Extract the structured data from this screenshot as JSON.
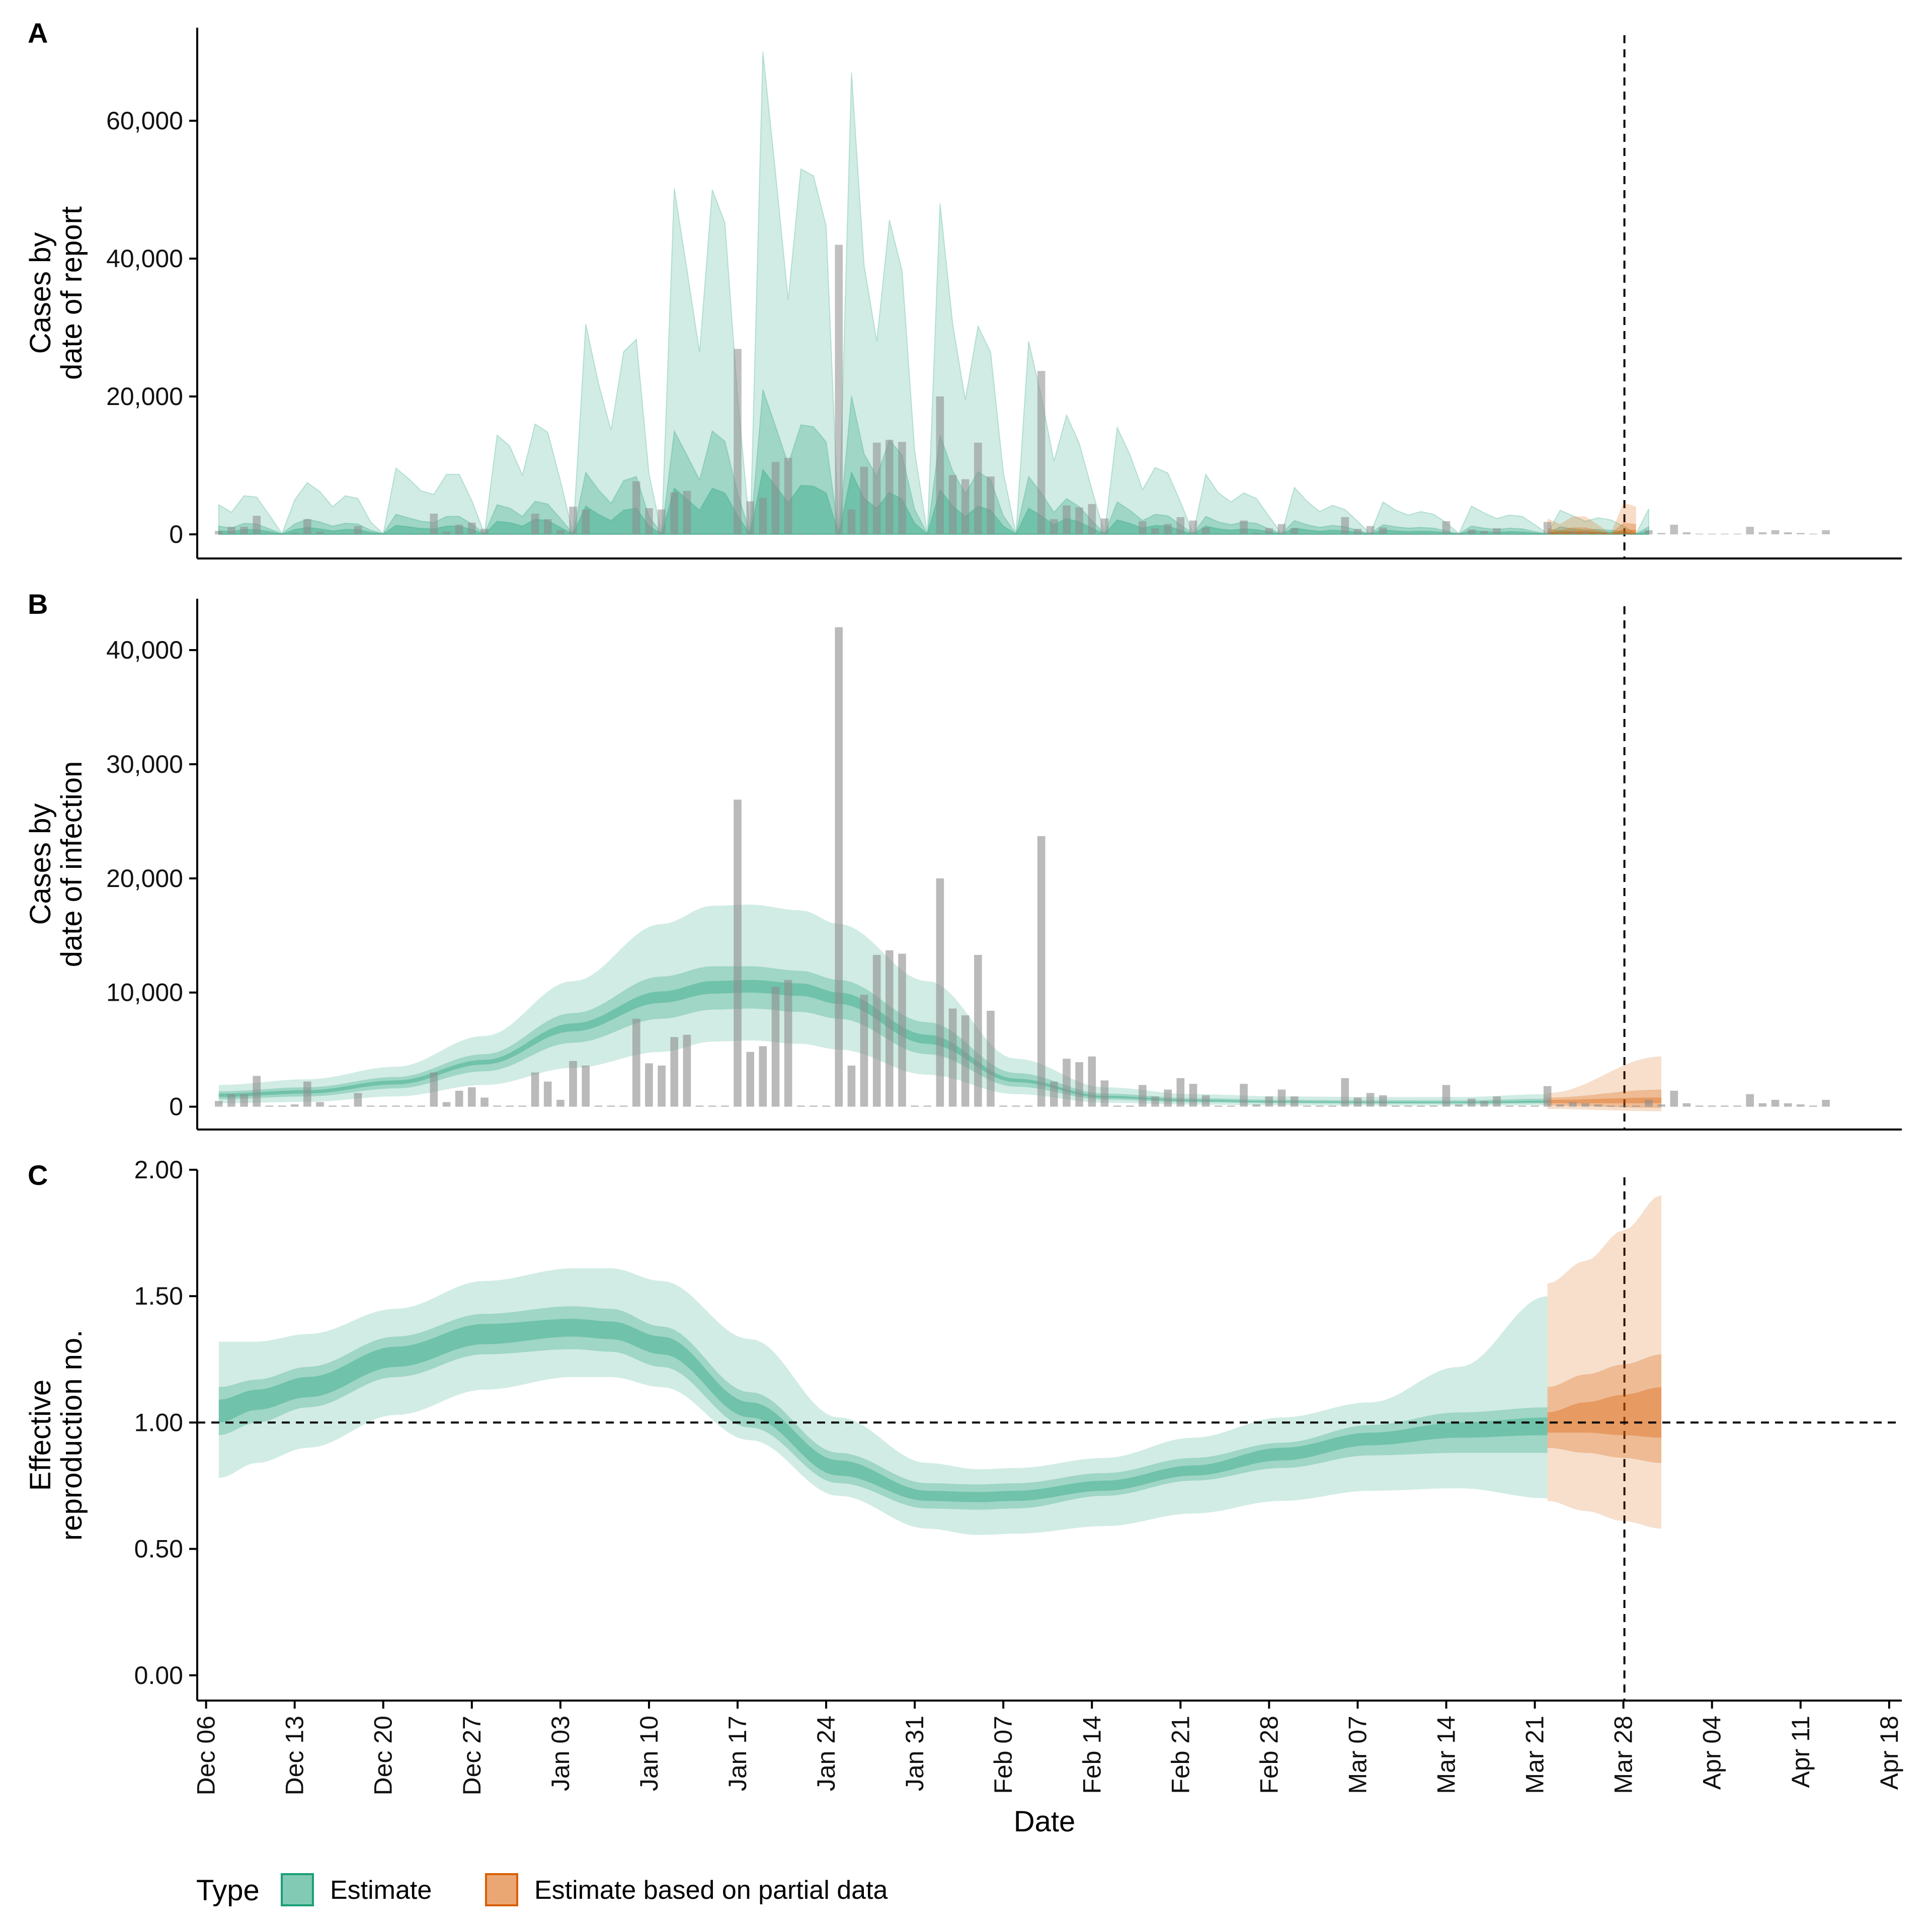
{
  "chart_data": {
    "type": "area",
    "shared_x_axis": {
      "label": "Date",
      "tick_labels": [
        "Dec 06",
        "Dec 13",
        "Dec 20",
        "Dec 27",
        "Jan 03",
        "Jan 10",
        "Jan 17",
        "Jan 24",
        "Jan 31",
        "Feb 07",
        "Feb 14",
        "Feb 21",
        "Feb 28",
        "Mar 07",
        "Mar 14",
        "Mar 21",
        "Mar 28",
        "Apr 04",
        "Apr 11",
        "Apr 18"
      ],
      "range_days_from_first_tick": [
        -0.7,
        134
      ],
      "vertical_marker": "Mar 28"
    },
    "colors": {
      "estimate": "#1b9e77",
      "partial": "#d95f02",
      "bars": "#8c8c8c"
    },
    "legend": {
      "title": "Type",
      "placement": "bottom-left",
      "items": [
        {
          "label": "Estimate",
          "color": "#1b9e77"
        },
        {
          "label": "Estimate based on partial data",
          "color": "#d95f02"
        }
      ]
    },
    "panels": [
      {
        "letter": "A",
        "ylabel_lines": [
          "Cases by",
          "date of report"
        ],
        "ylim": [
          -3500,
          73500
        ],
        "yticks": [
          0,
          20000,
          40000,
          60000
        ],
        "ytick_labels": [
          "0",
          "20,000",
          "40,000",
          "60,000"
        ]
      },
      {
        "letter": "B",
        "ylabel_lines": [
          "Cases by",
          "date of infection"
        ],
        "ylim": [
          -2000,
          44500
        ],
        "yticks": [
          0,
          10000,
          20000,
          30000,
          40000
        ],
        "ytick_labels": [
          "0",
          "10,000",
          "20,000",
          "30,000",
          "40,000"
        ]
      },
      {
        "letter": "C",
        "ylabel_lines": [
          "Effective",
          "reproduction no."
        ],
        "ylim": [
          -0.1,
          2.0
        ],
        "yticks": [
          0,
          0.5,
          1.0,
          1.5,
          2.0
        ],
        "ytick_labels": [
          "0.00",
          "0.50",
          "1.00",
          "1.50",
          "2.00"
        ],
        "horizontal_marker": 1.0
      }
    ],
    "observed_cases": {
      "start_date": "Dec 07",
      "values": [
        500,
        1100,
        1100,
        2700,
        100,
        100,
        200,
        2200,
        400,
        100,
        100,
        1200,
        100,
        100,
        100,
        100,
        100,
        3000,
        400,
        1400,
        1700,
        800,
        100,
        100,
        100,
        3000,
        2200,
        600,
        4000,
        3600,
        100,
        100,
        100,
        7700,
        3800,
        3600,
        6100,
        6300,
        100,
        100,
        100,
        26900,
        4800,
        5300,
        10500,
        11100,
        100,
        100,
        100,
        42000,
        3600,
        9800,
        13300,
        13700,
        13400,
        100,
        100,
        20000,
        8600,
        8000,
        13300,
        8400,
        100,
        100,
        100,
        23700,
        2200,
        4200,
        3900,
        4400,
        2300,
        100,
        100,
        1900,
        900,
        1500,
        2500,
        2000,
        1000,
        100,
        100,
        2000,
        200,
        900,
        1500,
        900,
        100,
        100,
        100,
        2500,
        800,
        1200,
        1000,
        100,
        100,
        100,
        100,
        1900,
        200,
        700,
        500,
        900,
        100,
        100,
        100,
        1800,
        200,
        400,
        300,
        200,
        100,
        100,
        100,
        600,
        200,
        1400,
        300,
        100,
        100,
        100,
        100,
        1100,
        300,
        600,
        300,
        200,
        100,
        600
      ]
    },
    "report_estimate": {
      "start_date": "Dec 07",
      "outer_upper": [
        4300,
        3200,
        5600,
        5400,
        2800,
        100,
        5000,
        7500,
        6200,
        4000,
        5600,
        5200,
        1800,
        100,
        9600,
        8100,
        6300,
        5800,
        8700,
        8700,
        4900,
        100,
        14400,
        12800,
        8600,
        16000,
        14800,
        7800,
        100,
        30500,
        22000,
        15100,
        26500,
        28300,
        8800,
        100,
        50200,
        38400,
        26400,
        50000,
        45200,
        20000,
        100,
        70000,
        52400,
        34000,
        53000,
        52000,
        44700,
        100,
        67000,
        39000,
        28000,
        45600,
        38200,
        12000,
        100,
        48000,
        30500,
        19500,
        30200,
        26400,
        9000,
        100,
        28000,
        20000,
        10600,
        17300,
        13200,
        6500,
        100,
        15500,
        11600,
        6500,
        9700,
        8900,
        4700,
        100,
        8700,
        6000,
        4700,
        6000,
        5200,
        2600,
        100,
        6800,
        4800,
        3300,
        4200,
        3600,
        1900,
        100,
        4700,
        3500,
        2800,
        3300,
        2900,
        1700,
        100,
        4100,
        3100,
        2300,
        2800,
        2600,
        1400,
        100,
        3500,
        2700,
        1900,
        2400,
        2100,
        1200,
        100,
        3700
      ],
      "mid_upper": [
        1200,
        900,
        1600,
        1500,
        800,
        100,
        1500,
        2200,
        1800,
        1200,
        1600,
        1500,
        600,
        100,
        2900,
        2400,
        1900,
        1700,
        2600,
        2600,
        1500,
        100,
        4300,
        3800,
        2600,
        4800,
        4400,
        2300,
        100,
        9000,
        6500,
        4500,
        7800,
        8400,
        2600,
        100,
        15000,
        11500,
        7900,
        15000,
        13500,
        6000,
        100,
        21000,
        15700,
        10200,
        15900,
        15600,
        13400,
        100,
        20100,
        11700,
        8400,
        13700,
        11500,
        3600,
        100,
        14400,
        9200,
        5900,
        9100,
        7900,
        2700,
        100,
        8400,
        6000,
        3200,
        5200,
        4000,
        2000,
        100,
        4700,
        3500,
        2000,
        2900,
        2700,
        1400,
        100,
        2600,
        1800,
        1400,
        1800,
        1600,
        800,
        100,
        2000,
        1400,
        1000,
        1300,
        1100,
        600,
        100,
        1400,
        1100,
        900,
        1000,
        900,
        500,
        100,
        1200,
        900,
        700,
        900,
        800,
        400,
        100,
        1100,
        800,
        600,
        700,
        600,
        400,
        100,
        1100
      ],
      "inner_upper": [
        500,
        400,
        700,
        700,
        400,
        50,
        700,
        1000,
        800,
        500,
        700,
        700,
        300,
        50,
        1300,
        1100,
        850,
        800,
        1200,
        1200,
        700,
        50,
        1900,
        1700,
        1200,
        2200,
        2000,
        1000,
        50,
        4100,
        2900,
        2000,
        3500,
        3800,
        1200,
        50,
        6700,
        5100,
        3500,
        6700,
        6000,
        2700,
        50,
        9400,
        7000,
        4600,
        7100,
        7000,
        6000,
        50,
        9000,
        5200,
        3800,
        6100,
        5100,
        1600,
        50,
        6500,
        4100,
        2600,
        4100,
        3500,
        1200,
        50,
        3800,
        2700,
        1400,
        2300,
        1800,
        900,
        50,
        2100,
        1600,
        900,
        1300,
        1200,
        600,
        50,
        1200,
        800,
        600,
        800,
        700,
        400,
        50,
        900,
        650,
        450,
        600,
        500,
        300,
        50,
        650,
        500,
        400,
        450,
        400,
        250,
        50,
        550,
        400,
        300,
        400,
        350,
        200,
        50,
        500,
        350,
        300,
        300,
        300,
        200,
        50,
        500
      ],
      "partial_start_date": "Mar 22",
      "partial_outer_upper": [
        2300,
        1500,
        2600,
        2600,
        1400,
        100,
        4600,
        4000
      ],
      "partial_mid_upper": [
        900,
        600,
        1000,
        1000,
        600,
        100,
        1700,
        1500
      ],
      "partial_inner_upper": [
        400,
        300,
        450,
        450,
        300,
        50,
        700,
        650
      ]
    },
    "infection_estimate": {
      "start_date": "Dec 07",
      "days": [
        0,
        7,
        14,
        21,
        28,
        35,
        39,
        42,
        46,
        49,
        56,
        63,
        70,
        77,
        84,
        91,
        98,
        105
      ],
      "outer_low": [
        300,
        420,
        900,
        1900,
        3400,
        4800,
        5700,
        5800,
        5500,
        5000,
        2800,
        1100,
        350,
        180,
        120,
        100,
        100,
        120
      ],
      "outer_high": [
        1900,
        2400,
        3500,
        6200,
        11000,
        16000,
        17600,
        17700,
        17200,
        16000,
        11000,
        4200,
        1700,
        1100,
        900,
        850,
        850,
        1100
      ],
      "mid_low": [
        650,
        900,
        1600,
        3100,
        5600,
        7700,
        8500,
        8600,
        8300,
        7700,
        4600,
        1750,
        620,
        380,
        300,
        260,
        250,
        280
      ],
      "mid_high": [
        1350,
        1700,
        2600,
        4600,
        8200,
        11400,
        12300,
        12300,
        11900,
        11100,
        7400,
        2950,
        1150,
        750,
        600,
        560,
        560,
        700
      ],
      "median_low": [
        850,
        1150,
        1950,
        3700,
        6600,
        9100,
        9900,
        10000,
        9700,
        9000,
        5500,
        2150,
        780,
        480,
        380,
        330,
        320,
        360
      ],
      "median_high": [
        1150,
        1450,
        2300,
        4100,
        7300,
        10100,
        11000,
        11100,
        10800,
        10000,
        6300,
        2450,
        950,
        600,
        480,
        430,
        430,
        520
      ],
      "partial_days": [
        105,
        114
      ],
      "partial_outer_low": [
        -200,
        -400
      ],
      "partial_outer_high": [
        1200,
        4400
      ],
      "partial_mid_low": [
        100,
        -100
      ],
      "partial_mid_high": [
        800,
        1500
      ],
      "partial_median_low": [
        300,
        300
      ],
      "partial_median_high": [
        600,
        800
      ]
    },
    "rt_estimate": {
      "start_date": "Dec 07",
      "days": [
        0,
        3,
        7,
        14,
        21,
        28,
        31,
        35,
        42,
        49,
        56,
        60,
        63,
        70,
        77,
        84,
        91,
        98,
        105
      ],
      "outer_low": [
        0.78,
        0.84,
        0.9,
        1.03,
        1.13,
        1.18,
        1.18,
        1.14,
        0.93,
        0.71,
        0.58,
        0.555,
        0.56,
        0.59,
        0.64,
        0.69,
        0.73,
        0.74,
        0.7
      ],
      "outer_high": [
        1.32,
        1.32,
        1.35,
        1.45,
        1.56,
        1.61,
        1.61,
        1.56,
        1.33,
        1.02,
        0.84,
        0.815,
        0.82,
        0.86,
        0.94,
        1.02,
        1.08,
        1.22,
        1.5
      ],
      "mid_low": [
        0.95,
        1.0,
        1.06,
        1.18,
        1.27,
        1.29,
        1.28,
        1.22,
        0.98,
        0.76,
        0.66,
        0.655,
        0.66,
        0.71,
        0.77,
        0.82,
        0.87,
        0.88,
        0.88
      ],
      "mid_high": [
        1.14,
        1.17,
        1.22,
        1.34,
        1.43,
        1.46,
        1.45,
        1.38,
        1.12,
        0.88,
        0.76,
        0.755,
        0.76,
        0.8,
        0.86,
        0.92,
        0.99,
        1.04,
        1.06
      ],
      "median_low": [
        1.0,
        1.05,
        1.1,
        1.22,
        1.31,
        1.34,
        1.33,
        1.27,
        1.02,
        0.79,
        0.69,
        0.685,
        0.69,
        0.73,
        0.79,
        0.85,
        0.91,
        0.94,
        0.95
      ],
      "median_high": [
        1.09,
        1.13,
        1.18,
        1.3,
        1.39,
        1.41,
        1.4,
        1.34,
        1.08,
        0.85,
        0.73,
        0.725,
        0.73,
        0.77,
        0.83,
        0.9,
        0.96,
        1.0,
        1.02
      ],
      "partial_days": [
        105,
        108,
        111,
        114
      ],
      "partial_outer_low": [
        0.69,
        0.65,
        0.61,
        0.58
      ],
      "partial_outer_high": [
        1.55,
        1.64,
        1.76,
        1.9
      ],
      "partial_mid_low": [
        0.9,
        0.88,
        0.86,
        0.84
      ],
      "partial_mid_high": [
        1.14,
        1.19,
        1.23,
        1.27
      ],
      "partial_median_low": [
        0.96,
        0.96,
        0.95,
        0.94
      ],
      "partial_median_high": [
        1.04,
        1.08,
        1.11,
        1.14
      ]
    }
  }
}
